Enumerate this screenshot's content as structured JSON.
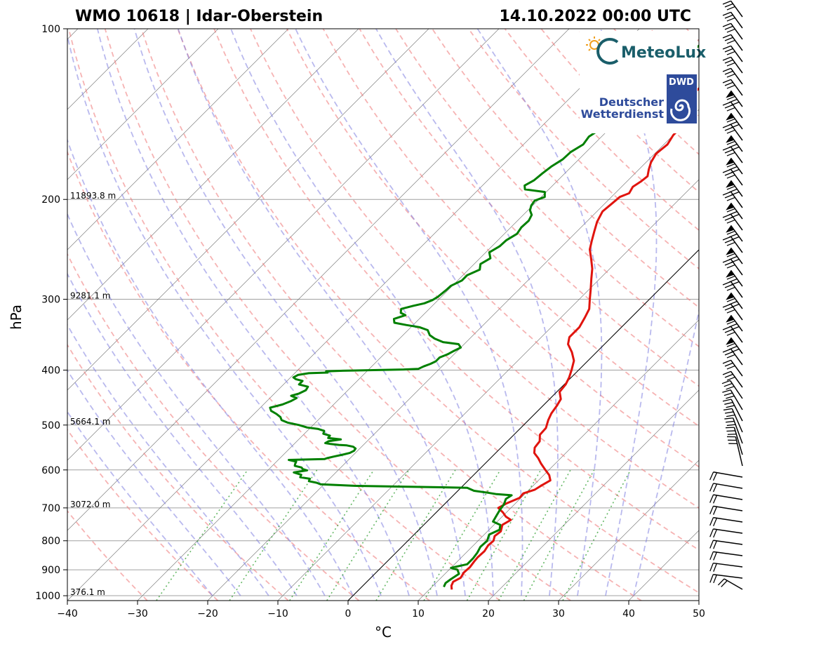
{
  "title_left": "WMO 10618 | Idar-Oberstein",
  "title_right": "14.10.2022 00:00 UTC",
  "logos": {
    "meteolux": "MeteoLux",
    "dwd_badge": "DWD",
    "dwd_line1": "Deutscher",
    "dwd_line2": "Wetterdienst"
  },
  "colors": {
    "temperature": "#e0140e",
    "dewpoint": "#008000",
    "dry_adiabat": "#f08080",
    "moist_adiabat": "#8080e0",
    "mixing_ratio": "#33a033",
    "isotherm": "#606060",
    "grid": "#a0a0a0",
    "dwd_blue": "#2e4b9b",
    "meteolux_teal": "#1a5e6a",
    "sun": "#f0a020"
  },
  "chart_data": {
    "type": "line",
    "subtype": "skew-T log-p",
    "xlabel": "°C",
    "ylabel": "hPa",
    "xlim": [
      -40,
      50
    ],
    "ylim": [
      1020,
      100
    ],
    "x_ticks": [
      -40,
      -30,
      -20,
      -10,
      0,
      10,
      20,
      30,
      40,
      50
    ],
    "x_tick_labels": [
      "−40",
      "−30",
      "−20",
      "−10",
      "0",
      "10",
      "20",
      "30",
      "40",
      "50"
    ],
    "y_ticks": [
      100,
      200,
      300,
      400,
      500,
      600,
      700,
      800,
      900,
      1000
    ],
    "y_tick_labels": [
      "100",
      "200",
      "300",
      "400",
      "500",
      "600",
      "700",
      "800",
      "900",
      "1000"
    ],
    "height_labels": [
      {
        "p": 200,
        "text": "11893.8 m"
      },
      {
        "p": 300,
        "text": "9281.1 m"
      },
      {
        "p": 500,
        "text": "5664.1 m"
      },
      {
        "p": 700,
        "text": "3072.0 m"
      },
      {
        "p": 1000,
        "text": "376.1 m"
      }
    ],
    "zero_isotherm_shown": true,
    "series": [
      {
        "name": "Temperature",
        "points": [
          [
            13.2,
            975
          ],
          [
            12.6,
            960
          ],
          [
            12.3,
            945
          ],
          [
            12.8,
            930
          ],
          [
            12.5,
            910
          ],
          [
            12.6,
            890
          ],
          [
            12.4,
            870
          ],
          [
            12.3,
            855
          ],
          [
            12.4,
            835
          ],
          [
            12.1,
            815
          ],
          [
            12.2,
            800
          ],
          [
            11.7,
            785
          ],
          [
            11.9,
            770
          ],
          [
            11.2,
            750
          ],
          [
            11.7,
            735
          ],
          [
            10.5,
            725
          ],
          [
            9.5,
            713
          ],
          [
            8.2,
            700
          ],
          [
            8.7,
            688
          ],
          [
            9.8,
            672
          ],
          [
            9.7,
            660
          ],
          [
            10.8,
            650
          ],
          [
            11.2,
            638
          ],
          [
            11.7,
            626
          ],
          [
            10.8,
            613
          ],
          [
            9.5,
            600
          ],
          [
            8.0,
            585
          ],
          [
            6.8,
            572
          ],
          [
            5.5,
            560
          ],
          [
            4.8,
            548
          ],
          [
            4.6,
            534
          ],
          [
            3.7,
            520
          ],
          [
            3.6,
            506
          ],
          [
            2.8,
            490
          ],
          [
            2.3,
            477
          ],
          [
            2.0,
            463
          ],
          [
            1.6,
            450
          ],
          [
            0.4,
            437
          ],
          [
            0.2,
            424
          ],
          [
            -0.3,
            412
          ],
          [
            -1.0,
            400
          ],
          [
            -2.0,
            385
          ],
          [
            -3.5,
            372
          ],
          [
            -5.2,
            360
          ],
          [
            -6.0,
            350
          ],
          [
            -6.0,
            336
          ],
          [
            -6.6,
            323
          ],
          [
            -7.2,
            312
          ],
          [
            -8.5,
            300
          ],
          [
            -9.8,
            288
          ],
          [
            -11.2,
            276
          ],
          [
            -12.5,
            265
          ],
          [
            -14.0,
            255
          ],
          [
            -15.6,
            245
          ],
          [
            -16.5,
            237
          ],
          [
            -17.5,
            228
          ],
          [
            -18.5,
            219
          ],
          [
            -19.2,
            210
          ],
          [
            -19.0,
            204
          ],
          [
            -18.8,
            198
          ],
          [
            -18.0,
            195
          ],
          [
            -18.4,
            190
          ],
          [
            -18.0,
            186
          ],
          [
            -17.8,
            182
          ],
          [
            -18.6,
            177
          ],
          [
            -19.3,
            172
          ],
          [
            -19.8,
            166
          ],
          [
            -19.5,
            160
          ],
          [
            -20.0,
            154
          ],
          [
            -20.0,
            150
          ],
          [
            -20.7,
            146
          ],
          [
            -21.0,
            141
          ],
          [
            -22.3,
            135
          ],
          [
            -23.0,
            131
          ],
          [
            -23.0,
            127
          ],
          [
            -24.0,
            122
          ],
          [
            -23.0,
            119
          ],
          [
            -25.8,
            115
          ],
          [
            -25.8,
            110
          ],
          [
            -26.7,
            105
          ],
          [
            -27.3,
            100
          ]
        ]
      },
      {
        "name": "Dewpoint",
        "points": [
          [
            11.7,
            965
          ],
          [
            11.4,
            950
          ],
          [
            11.6,
            935
          ],
          [
            12.0,
            915
          ],
          [
            11.2,
            900
          ],
          [
            10.0,
            893
          ],
          [
            11.8,
            880
          ],
          [
            11.8,
            860
          ],
          [
            11.6,
            840
          ],
          [
            11.2,
            820
          ],
          [
            11.3,
            800
          ],
          [
            10.7,
            780
          ],
          [
            11.5,
            765
          ],
          [
            10.9,
            750
          ],
          [
            9.4,
            740
          ],
          [
            9.0,
            720
          ],
          [
            8.7,
            705
          ],
          [
            8.5,
            690
          ],
          [
            8.0,
            675
          ],
          [
            8.3,
            665
          ],
          [
            6.0,
            662
          ],
          [
            4.5,
            658
          ],
          [
            2.3,
            653
          ],
          [
            0.9,
            645
          ],
          [
            -5.2,
            643
          ],
          [
            -15.5,
            640
          ],
          [
            -20.5,
            636
          ],
          [
            -21.3,
            632
          ],
          [
            -22.6,
            628
          ],
          [
            -22.8,
            622
          ],
          [
            -24.4,
            618
          ],
          [
            -24.6,
            612
          ],
          [
            -26.0,
            606
          ],
          [
            -24.4,
            601
          ],
          [
            -25.2,
            598
          ],
          [
            -25.6,
            594
          ],
          [
            -26.8,
            590
          ],
          [
            -27.0,
            586
          ],
          [
            -27.2,
            580
          ],
          [
            -28.5,
            576
          ],
          [
            -23.5,
            574
          ],
          [
            -23.3,
            572
          ],
          [
            -22.5,
            568
          ],
          [
            -21.6,
            564
          ],
          [
            -20.8,
            560
          ],
          [
            -20.5,
            555
          ],
          [
            -20.6,
            550
          ],
          [
            -21.2,
            546
          ],
          [
            -22.3,
            543
          ],
          [
            -23.5,
            542
          ],
          [
            -24.8,
            540
          ],
          [
            -25.7,
            538
          ],
          [
            -25.5,
            534
          ],
          [
            -24.0,
            530
          ],
          [
            -26.0,
            527
          ],
          [
            -26.1,
            522
          ],
          [
            -27.3,
            518
          ],
          [
            -27.6,
            512
          ],
          [
            -28.7,
            508
          ],
          [
            -30.5,
            505
          ],
          [
            -32.0,
            500
          ],
          [
            -34.0,
            495
          ],
          [
            -35.2,
            490
          ],
          [
            -35.8,
            484
          ],
          [
            -36.8,
            478
          ],
          [
            -38.0,
            472
          ],
          [
            -38.6,
            466
          ],
          [
            -37.3,
            460
          ],
          [
            -36.6,
            454
          ],
          [
            -36.2,
            448
          ],
          [
            -37.3,
            444
          ],
          [
            -36.5,
            440
          ],
          [
            -36.0,
            434
          ],
          [
            -36.2,
            428
          ],
          [
            -37.8,
            424
          ],
          [
            -37.8,
            418
          ],
          [
            -39.0,
            415
          ],
          [
            -39.6,
            412
          ],
          [
            -39.3,
            408
          ],
          [
            -38.0,
            405
          ],
          [
            -35.4,
            404
          ],
          [
            -35.8,
            402
          ],
          [
            -33.5,
            401
          ],
          [
            -25.0,
            399
          ],
          [
            -23.0,
            398
          ],
          [
            -22.6,
            394
          ],
          [
            -22.0,
            390
          ],
          [
            -21.6,
            386
          ],
          [
            -21.6,
            380
          ],
          [
            -20.9,
            375
          ],
          [
            -20.5,
            370
          ],
          [
            -20.0,
            365
          ],
          [
            -20.8,
            360
          ],
          [
            -23.3,
            357
          ],
          [
            -25.0,
            352
          ],
          [
            -26.2,
            347
          ],
          [
            -27.2,
            340
          ],
          [
            -28.8,
            336
          ],
          [
            -31.0,
            333
          ],
          [
            -33.0,
            330
          ],
          [
            -33.6,
            325
          ],
          [
            -32.5,
            320
          ],
          [
            -33.5,
            317
          ],
          [
            -34.0,
            312
          ],
          [
            -32.7,
            308
          ],
          [
            -31.5,
            305
          ],
          [
            -30.8,
            301
          ],
          [
            -30.5,
            297
          ],
          [
            -30.3,
            290
          ],
          [
            -30.2,
            284
          ],
          [
            -29.4,
            278
          ],
          [
            -29.4,
            272
          ],
          [
            -28.4,
            266
          ],
          [
            -29.1,
            260
          ],
          [
            -28.5,
            254
          ],
          [
            -29.5,
            248
          ],
          [
            -28.9,
            242
          ],
          [
            -28.8,
            236
          ],
          [
            -28.2,
            230
          ],
          [
            -28.5,
            224
          ],
          [
            -28.4,
            218
          ],
          [
            -28.8,
            213
          ],
          [
            -29.7,
            209
          ],
          [
            -30.2,
            205
          ],
          [
            -30.4,
            201
          ],
          [
            -29.5,
            198
          ],
          [
            -30.2,
            194
          ],
          [
            -33.4,
            192
          ],
          [
            -34.0,
            189
          ],
          [
            -33.4,
            185
          ],
          [
            -33.2,
            180
          ],
          [
            -32.9,
            175
          ],
          [
            -32.3,
            170
          ],
          [
            -32.2,
            165
          ],
          [
            -31.5,
            160
          ],
          [
            -31.8,
            155
          ],
          [
            -31.2,
            150
          ],
          [
            -30.2,
            145
          ],
          [
            -30.7,
            140
          ],
          [
            -30.3,
            135
          ],
          [
            -30.0,
            130
          ],
          [
            -29.8,
            125
          ],
          [
            -29.8,
            120
          ],
          [
            -29.0,
            115
          ],
          [
            -29.2,
            110
          ],
          [
            -29.0,
            105
          ],
          [
            -28.8,
            100
          ]
        ]
      }
    ],
    "wind_barbs_note": "vertical column of wind barbs to the right of the diagram, stronger flags aloft, light near surface"
  }
}
